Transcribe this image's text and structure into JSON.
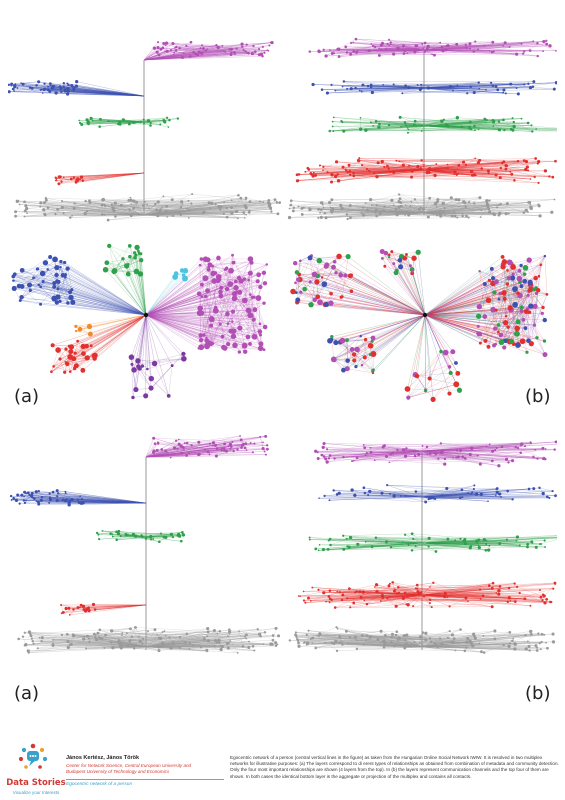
{
  "panel_labels": {
    "top_left": "(a)",
    "top_right": "(b)",
    "bottom_left": "(a)",
    "bottom_right": "(b)"
  },
  "colors": {
    "magenta": "#b24fb5",
    "blue": "#3d52b0",
    "green": "#2fa04c",
    "red": "#e2302f",
    "gray": "#9a9a9a",
    "purple": "#7b3aa0",
    "orange": "#f08a2a",
    "cyan": "#4ec3e0"
  },
  "footer": {
    "logo_name": "speech-bubble-network-icon",
    "logo_title": "Data Stories",
    "logo_tagline": "Visualize your Interests",
    "authors": "János Kertész, János Török",
    "affiliation_1": "Center for Network Science, Central European University and",
    "affiliation_2": "Budapest University of Technology and Economics",
    "subtitle": "Egocentric network of a person",
    "caption": "Egocentric network of a person (central vertical lines in the figure) as taken from the Hungarian Online Social Network IWIW.  It is resolved in two multiplex networks for illustrative purposes: (a) The layers correspond to di erent types of relationships as obtained from combination of metadata and community detection. Only the four most important relationships are shown (4 layers from the top). In (b) the layers represent communication channels and the top four of them are shown. In both cases the identical bottom layer is the aggregate or projection of the multiplex and contains all contacts."
  }
}
